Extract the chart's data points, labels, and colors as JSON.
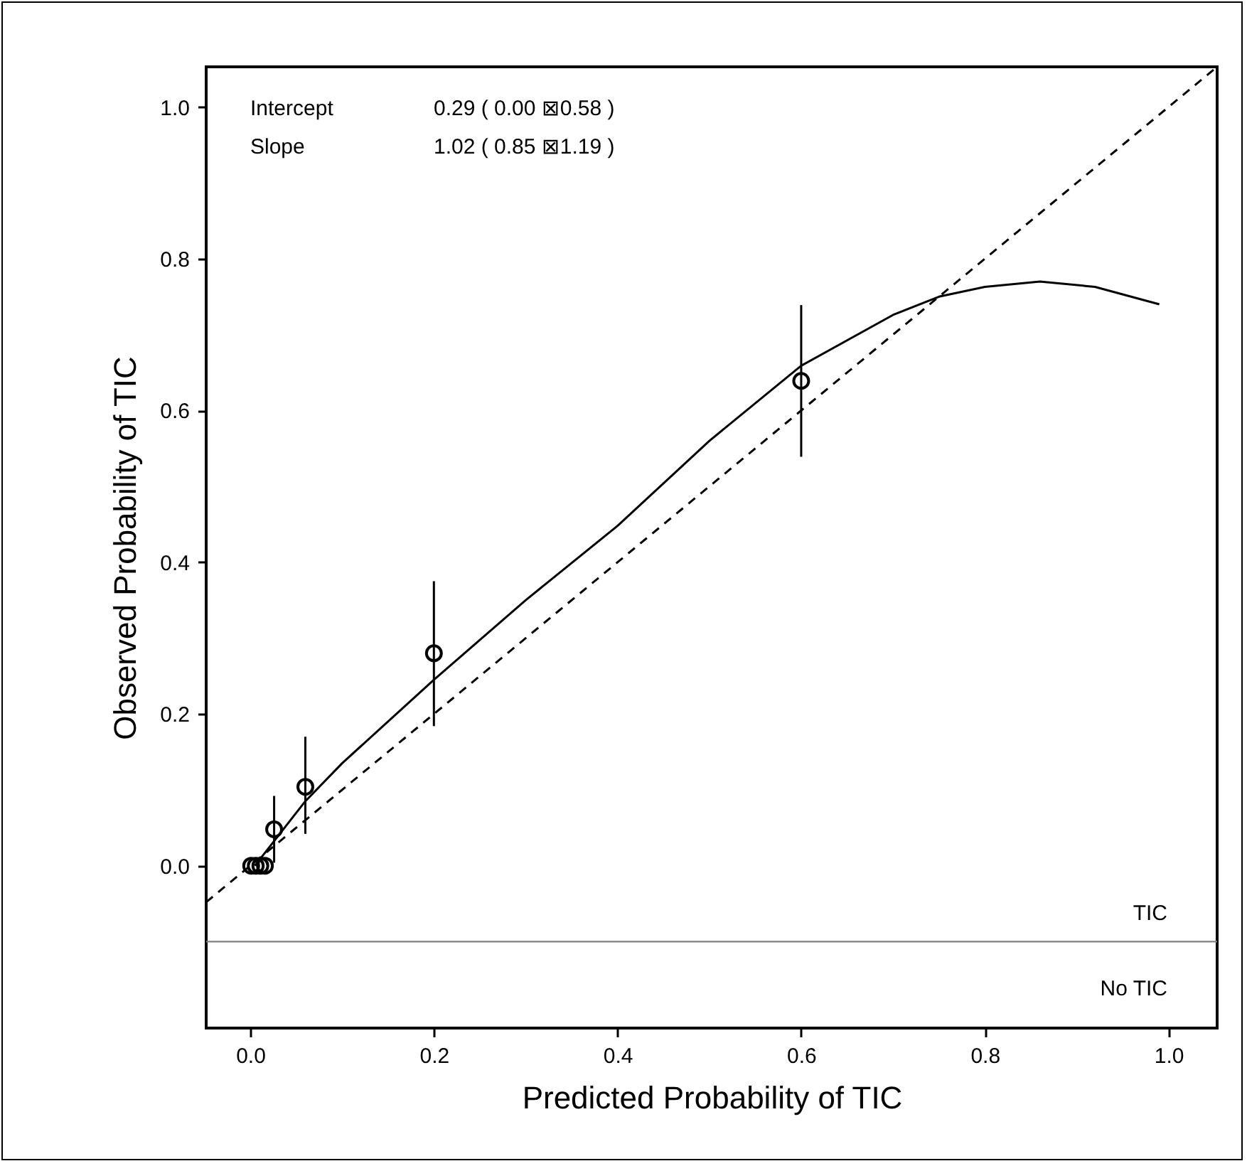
{
  "chart_data": {
    "type": "scatter",
    "xlabel": "Predicted Probability of TIC",
    "ylabel": "Observed Probability of TIC",
    "xlim": [
      -0.048,
      1.053
    ],
    "ylim": [
      -0.214,
      1.053
    ],
    "xticks": [
      {
        "value": 0,
        "label": "0.0"
      },
      0.2,
      0.4,
      0.6,
      0.8,
      {
        "value": 1,
        "label": "1.0"
      }
    ],
    "yticks": [
      {
        "value": 0,
        "label": "0.0"
      },
      0.2,
      0.4,
      0.6,
      0.8,
      {
        "value": 1,
        "label": "1.0"
      }
    ],
    "grid": false,
    "series": [
      {
        "type": "scatter",
        "color": "#000000",
        "marker": "circle",
        "x": [
          0.001,
          0.006,
          0.011,
          0.016,
          0.026,
          0.06,
          0.2,
          0.6
        ],
        "values": [
          0,
          0,
          0,
          0,
          0.048,
          0.104,
          0.28,
          0.639
        ],
        "errors": [
          null,
          null,
          null,
          null,
          [
            0.004,
            0.092
          ],
          [
            0.042,
            0.17
          ],
          [
            0.184,
            0.375
          ],
          [
            0.539,
            0.739
          ]
        ]
      },
      {
        "type": "line",
        "color": "#000000",
        "line_style": "dashed",
        "x": [
          -0.048,
          1.053
        ],
        "values": [
          -0.048,
          1.053
        ]
      },
      {
        "type": "line",
        "color": "#000000",
        "line_style": "solid",
        "x": [
          0.005,
          0.06,
          0.1,
          0.2,
          0.3,
          0.4,
          0.5,
          0.6,
          0.7,
          0.75,
          0.8,
          0.86,
          0.92,
          0.99
        ],
        "values": [
          0.0,
          0.085,
          0.135,
          0.245,
          0.35,
          0.448,
          0.56,
          0.659,
          0.726,
          0.75,
          0.763,
          0.77,
          0.763,
          0.74
        ]
      }
    ],
    "ref_lines": [
      {
        "axis": "y",
        "value": -0.1,
        "color": "#808080"
      }
    ],
    "annotations": [
      "Intercept",
      "0.29 ( 0.00 ⊠0.58 )",
      "Slope",
      "1.02 ( 0.85 ⊠1.19 )",
      "TIC",
      "No TIC"
    ]
  }
}
